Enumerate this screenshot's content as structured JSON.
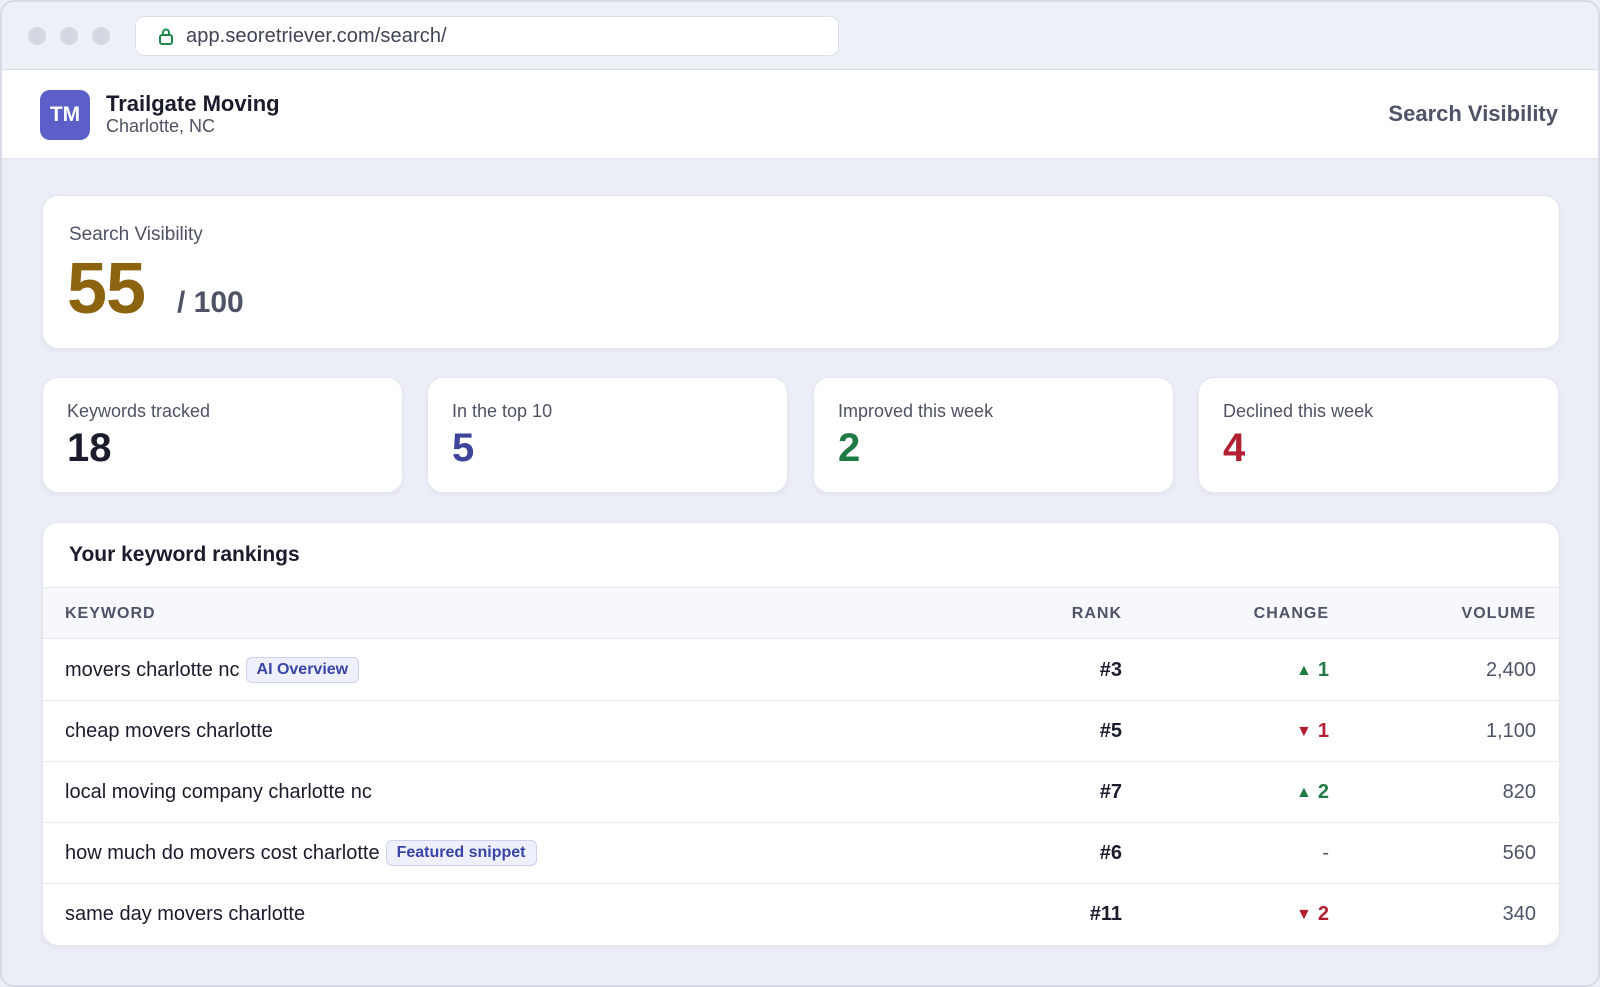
{
  "browser": {
    "url": "app.seoretriever.com/search/"
  },
  "header": {
    "avatar_initials": "TM",
    "business_name": "Trailgate Moving",
    "location": "Charlotte, NC",
    "app_title": "Search Visibility"
  },
  "score": {
    "label": "Search Visibility",
    "value": "55",
    "max": "/ 100",
    "color": "#8c6410"
  },
  "stats": [
    {
      "label": "Keywords tracked",
      "value": "18",
      "color": "#1a1c2b"
    },
    {
      "label": "In the top 10",
      "value": "5",
      "color": "#3d449a"
    },
    {
      "label": "Improved this week",
      "value": "2",
      "color": "#1f7a45"
    },
    {
      "label": "Declined this week",
      "value": "4",
      "color": "#b21f33"
    }
  ],
  "rankings": {
    "title": "Your keyword rankings",
    "columns": {
      "keyword": "KEYWORD",
      "rank": "RANK",
      "change": "CHANGE",
      "volume": "VOLUME"
    },
    "rows": [
      {
        "keyword": "movers charlotte nc",
        "badge": "AI Overview",
        "rank": "#3",
        "change": "1",
        "direction": "up",
        "volume": "2,400"
      },
      {
        "keyword": "cheap movers charlotte",
        "badge": "",
        "rank": "#5",
        "change": "1",
        "direction": "down",
        "volume": "1,100"
      },
      {
        "keyword": "local moving company charlotte nc",
        "badge": "",
        "rank": "#7",
        "change": "2",
        "direction": "up",
        "volume": "820"
      },
      {
        "keyword": "how much do movers cost charlotte",
        "badge": "Featured snippet",
        "rank": "#6",
        "change": "-",
        "direction": "none",
        "volume": "560"
      },
      {
        "keyword": "same day movers charlotte",
        "badge": "",
        "rank": "#11",
        "change": "2",
        "direction": "down",
        "volume": "340"
      }
    ]
  },
  "icons": {
    "lock": "lock-icon",
    "up": "triangle-up-icon",
    "down": "triangle-down-icon"
  }
}
